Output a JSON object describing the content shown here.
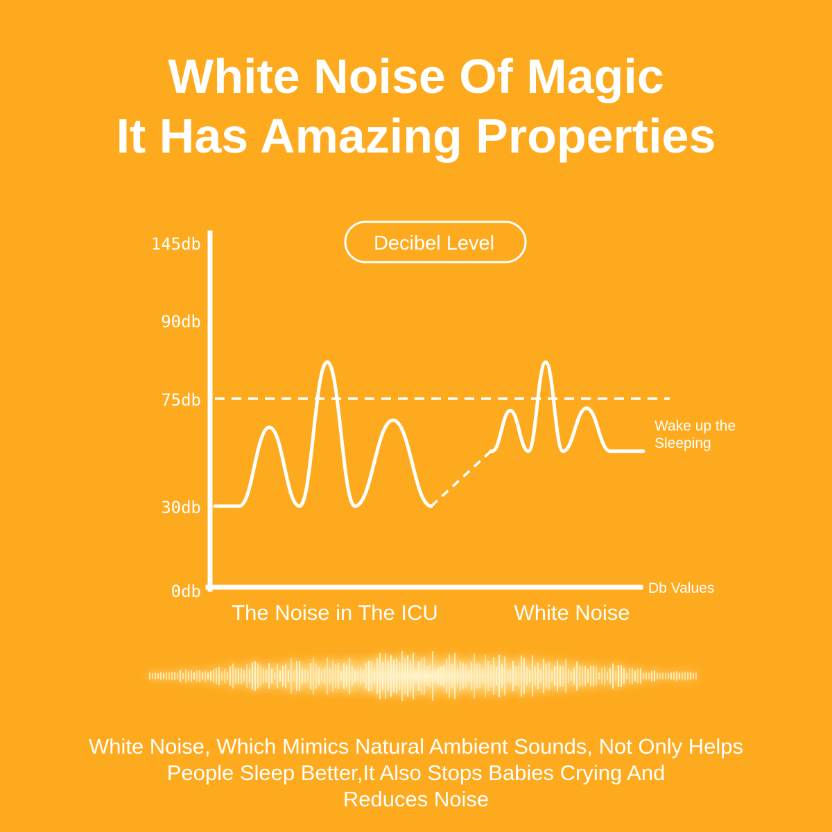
{
  "header": {
    "title_line1": "White Noise Of Magic",
    "title_line2": "It Has Amazing Properties"
  },
  "chart_data": {
    "type": "line",
    "title": "Decibel Level",
    "xlabel": "Db Values",
    "ylabel": "",
    "y_ticks": [
      {
        "value": 145,
        "label": "145db"
      },
      {
        "value": 90,
        "label": "90db"
      },
      {
        "value": 75,
        "label": "75db"
      },
      {
        "value": 30,
        "label": "30db"
      },
      {
        "value": 0,
        "label": "0db"
      }
    ],
    "categories": [
      "The Noise in The ICU",
      "White Noise"
    ],
    "threshold": {
      "value": 75,
      "label_line1": "Wake up the",
      "label_line2": "Sleeping"
    },
    "series": [
      {
        "baseline": 30,
        "peaks": [
          63,
          82,
          66
        ]
      },
      {
        "baseline": 53,
        "peaks": [
          70,
          82,
          71
        ]
      }
    ],
    "grid": false
  },
  "caption": {
    "line1": "White Noise, Which Mimics Natural Ambient Sounds, Not Only Helps",
    "line2": "People Sleep Better,It Also Stops Babies Crying And",
    "line3": "Reduces Noise"
  },
  "colors": {
    "background": "#FDAA1E",
    "foreground": "#FFFFFF",
    "glow": "#FFE9A8"
  }
}
